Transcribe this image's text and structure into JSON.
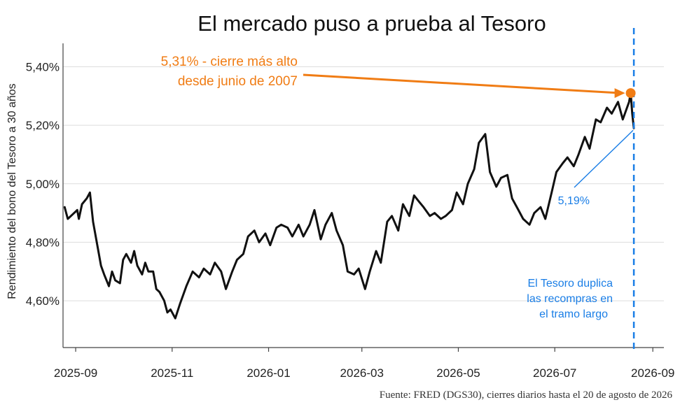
{
  "chart_data": {
    "type": "line",
    "title": "El mercado puso a prueba al Tesoro",
    "ylabel": "Rendimiento del bono del Tesoro a 30 años",
    "source": "Fuente: FRED (DGS30), cierres diarios hasta el 20 de agosto de 2026",
    "ylim": [
      4.44,
      5.48
    ],
    "xlim": [
      "2025-08-24",
      "2026-09-08"
    ],
    "y_ticks": [
      {
        "value": 4.6,
        "label": "4,60%"
      },
      {
        "value": 4.8,
        "label": "4,80%"
      },
      {
        "value": 5.0,
        "label": "5,00%"
      },
      {
        "value": 5.2,
        "label": "5,20%"
      },
      {
        "value": 5.4,
        "label": "5,40%"
      }
    ],
    "x_ticks": [
      {
        "date": "2025-09-01",
        "label": "2025-09"
      },
      {
        "date": "2025-11-01",
        "label": "2025-11"
      },
      {
        "date": "2026-01-01",
        "label": "2026-01"
      },
      {
        "date": "2026-03-01",
        "label": "2026-03"
      },
      {
        "date": "2026-05-01",
        "label": "2026-05"
      },
      {
        "date": "2026-07-01",
        "label": "2026-07"
      },
      {
        "date": "2026-09-01",
        "label": "2026-09"
      }
    ],
    "grid": "horizontal",
    "line_color": "#111111",
    "series": [
      {
        "name": "",
        "points": [
          [
            "2025-08-25",
            4.92
          ],
          [
            "2025-08-27",
            4.88
          ],
          [
            "2025-08-29",
            4.89
          ],
          [
            "2025-09-02",
            4.91
          ],
          [
            "2025-09-03",
            4.88
          ],
          [
            "2025-09-05",
            4.93
          ],
          [
            "2025-09-08",
            4.95
          ],
          [
            "2025-09-10",
            4.97
          ],
          [
            "2025-09-12",
            4.87
          ],
          [
            "2025-09-15",
            4.78
          ],
          [
            "2025-09-17",
            4.72
          ],
          [
            "2025-09-19",
            4.69
          ],
          [
            "2025-09-22",
            4.65
          ],
          [
            "2025-09-24",
            4.7
          ],
          [
            "2025-09-26",
            4.67
          ],
          [
            "2025-09-29",
            4.66
          ],
          [
            "2025-10-01",
            4.74
          ],
          [
            "2025-10-03",
            4.76
          ],
          [
            "2025-10-06",
            4.73
          ],
          [
            "2025-10-08",
            4.77
          ],
          [
            "2025-10-10",
            4.72
          ],
          [
            "2025-10-13",
            4.69
          ],
          [
            "2025-10-15",
            4.73
          ],
          [
            "2025-10-17",
            4.7
          ],
          [
            "2025-10-20",
            4.7
          ],
          [
            "2025-10-22",
            4.64
          ],
          [
            "2025-10-24",
            4.63
          ],
          [
            "2025-10-27",
            4.6
          ],
          [
            "2025-10-29",
            4.56
          ],
          [
            "2025-10-31",
            4.57
          ],
          [
            "2025-11-03",
            4.54
          ],
          [
            "2025-11-06",
            4.59
          ],
          [
            "2025-11-10",
            4.65
          ],
          [
            "2025-11-14",
            4.7
          ],
          [
            "2025-11-18",
            4.68
          ],
          [
            "2025-11-21",
            4.71
          ],
          [
            "2025-11-25",
            4.69
          ],
          [
            "2025-11-28",
            4.73
          ],
          [
            "2025-12-02",
            4.7
          ],
          [
            "2025-12-05",
            4.64
          ],
          [
            "2025-12-09",
            4.7
          ],
          [
            "2025-12-12",
            4.74
          ],
          [
            "2025-12-16",
            4.76
          ],
          [
            "2025-12-19",
            4.82
          ],
          [
            "2025-12-23",
            4.84
          ],
          [
            "2025-12-26",
            4.8
          ],
          [
            "2025-12-30",
            4.83
          ],
          [
            "2026-01-02",
            4.79
          ],
          [
            "2026-01-06",
            4.85
          ],
          [
            "2026-01-09",
            4.86
          ],
          [
            "2026-01-13",
            4.85
          ],
          [
            "2026-01-16",
            4.82
          ],
          [
            "2026-01-20",
            4.86
          ],
          [
            "2026-01-23",
            4.82
          ],
          [
            "2026-01-27",
            4.86
          ],
          [
            "2026-01-30",
            4.91
          ],
          [
            "2026-02-03",
            4.81
          ],
          [
            "2026-02-06",
            4.86
          ],
          [
            "2026-02-10",
            4.9
          ],
          [
            "2026-02-13",
            4.84
          ],
          [
            "2026-02-17",
            4.79
          ],
          [
            "2026-02-20",
            4.7
          ],
          [
            "2026-02-24",
            4.69
          ],
          [
            "2026-02-27",
            4.71
          ],
          [
            "2026-03-03",
            4.64
          ],
          [
            "2026-03-06",
            4.7
          ],
          [
            "2026-03-10",
            4.77
          ],
          [
            "2026-03-13",
            4.73
          ],
          [
            "2026-03-17",
            4.87
          ],
          [
            "2026-03-20",
            4.89
          ],
          [
            "2026-03-24",
            4.84
          ],
          [
            "2026-03-27",
            4.93
          ],
          [
            "2026-03-31",
            4.89
          ],
          [
            "2026-04-03",
            4.96
          ],
          [
            "2026-04-06",
            4.94
          ],
          [
            "2026-04-09",
            4.92
          ],
          [
            "2026-04-13",
            4.89
          ],
          [
            "2026-04-16",
            4.9
          ],
          [
            "2026-04-20",
            4.88
          ],
          [
            "2026-04-23",
            4.89
          ],
          [
            "2026-04-27",
            4.91
          ],
          [
            "2026-04-30",
            4.97
          ],
          [
            "2026-05-04",
            4.93
          ],
          [
            "2026-05-07",
            5.0
          ],
          [
            "2026-05-11",
            5.05
          ],
          [
            "2026-05-14",
            5.14
          ],
          [
            "2026-05-18",
            5.17
          ],
          [
            "2026-05-21",
            5.04
          ],
          [
            "2026-05-25",
            4.99
          ],
          [
            "2026-05-28",
            5.02
          ],
          [
            "2026-06-01",
            5.03
          ],
          [
            "2026-06-04",
            4.95
          ],
          [
            "2026-06-08",
            4.91
          ],
          [
            "2026-06-11",
            4.88
          ],
          [
            "2026-06-15",
            4.86
          ],
          [
            "2026-06-18",
            4.9
          ],
          [
            "2026-06-22",
            4.92
          ],
          [
            "2026-06-25",
            4.88
          ],
          [
            "2026-06-29",
            4.97
          ],
          [
            "2026-07-02",
            5.04
          ],
          [
            "2026-07-06",
            5.07
          ],
          [
            "2026-07-09",
            5.09
          ],
          [
            "2026-07-13",
            5.06
          ],
          [
            "2026-07-16",
            5.1
          ],
          [
            "2026-07-20",
            5.16
          ],
          [
            "2026-07-23",
            5.12
          ],
          [
            "2026-07-27",
            5.22
          ],
          [
            "2026-07-30",
            5.21
          ],
          [
            "2026-08-03",
            5.26
          ],
          [
            "2026-08-06",
            5.24
          ],
          [
            "2026-08-10",
            5.28
          ],
          [
            "2026-08-13",
            5.22
          ],
          [
            "2026-08-17",
            5.28
          ],
          [
            "2026-08-18",
            5.31
          ],
          [
            "2026-08-19",
            5.24
          ],
          [
            "2026-08-20",
            5.19
          ]
        ]
      }
    ],
    "annotations": {
      "high": {
        "label_line1": "5,31% - cierre más alto",
        "label_line2": "desde junio de 2007",
        "date": "2026-08-18",
        "value": 5.31,
        "color": "#f07c14"
      },
      "last": {
        "label": "5,19%",
        "date": "2026-08-20",
        "value": 5.19,
        "color": "#1a7ee6"
      },
      "event": {
        "lines": [
          "El Tesoro duplica",
          "las recompras en",
          "el tramo largo"
        ],
        "date": "2026-08-20",
        "color": "#1a7ee6"
      }
    }
  }
}
